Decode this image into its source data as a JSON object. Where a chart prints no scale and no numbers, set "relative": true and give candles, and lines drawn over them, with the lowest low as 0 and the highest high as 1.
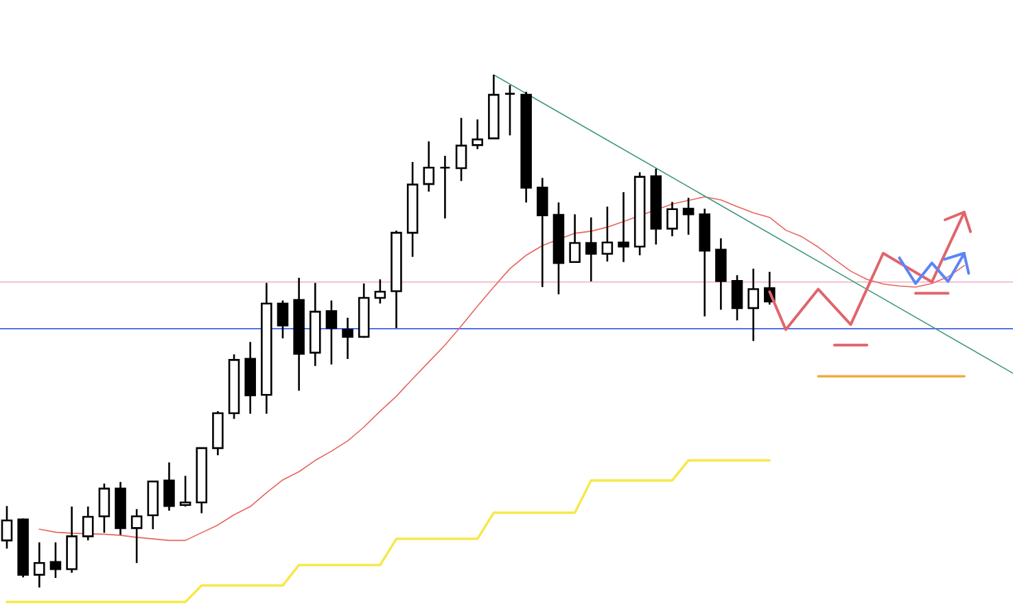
{
  "chart_data": {
    "type": "candlestick",
    "relative": true,
    "color": "#000000",
    "categories": [
      null,
      null,
      null,
      null,
      null,
      null,
      null,
      null,
      null,
      null,
      null,
      null,
      null,
      null,
      null,
      null,
      null,
      null,
      null,
      null,
      null,
      null,
      null,
      null,
      null,
      null,
      null,
      null,
      null,
      null,
      null,
      null,
      null,
      null,
      null,
      null,
      null,
      null,
      null,
      null,
      null,
      null,
      null,
      null,
      null,
      null,
      null,
      null,
      null,
      null,
      null,
      null,
      null,
      null,
      null,
      null,
      null,
      null,
      null,
      null,
      null,
      null,
      null
    ],
    "ohlc": [
      [
        0.092,
        0.159,
        0.076,
        0.131
      ],
      [
        0.133,
        0.135,
        0.02,
        0.025
      ],
      [
        0.025,
        0.088,
        0,
        0.048
      ],
      [
        0.05,
        0.088,
        0.019,
        0.036
      ],
      [
        0.036,
        0.158,
        0.029,
        0.1
      ],
      [
        0.1,
        0.158,
        0.092,
        0.138
      ],
      [
        0.139,
        0.203,
        0.107,
        0.193
      ],
      [
        0.193,
        0.206,
        0.103,
        0.116
      ],
      [
        0.116,
        0.153,
        0.048,
        0.139
      ],
      [
        0.141,
        0.207,
        0.114,
        0.207
      ],
      [
        0.209,
        0.244,
        0.15,
        0.159
      ],
      [
        0.161,
        0.218,
        0.158,
        0.166
      ],
      [
        0.166,
        0.274,
        0.145,
        0.272
      ],
      [
        0.272,
        0.344,
        0.258,
        0.34
      ],
      [
        0.34,
        0.455,
        0.329,
        0.444
      ],
      [
        0.446,
        0.479,
        0.339,
        0.375
      ],
      [
        0.376,
        0.594,
        0.339,
        0.554
      ],
      [
        0.554,
        0.56,
        0.486,
        0.511
      ],
      [
        0.561,
        0.604,
        0.384,
        0.456
      ],
      [
        0.458,
        0.594,
        0.432,
        0.538
      ],
      [
        0.539,
        0.56,
        0.435,
        0.506
      ],
      [
        0.503,
        0.526,
        0.446,
        0.489
      ],
      [
        0.489,
        0.593,
        0.487,
        0.565
      ],
      [
        0.565,
        0.601,
        0.554,
        0.577
      ],
      [
        0.578,
        0.696,
        0.506,
        0.692
      ],
      [
        0.692,
        0.83,
        0.645,
        0.786
      ],
      [
        0.787,
        0.87,
        0.772,
        0.819
      ],
      [
        0.819,
        0.842,
        0.72,
        0.819
      ],
      [
        0.818,
        0.916,
        0.793,
        0.862
      ],
      [
        0.863,
        0.913,
        0.855,
        0.874
      ],
      [
        0.876,
        1,
        0.876,
        0.961
      ],
      [
        0.963,
        0.98,
        0.882,
        0.963
      ],
      [
        0.961,
        0.967,
        0.751,
        0.78
      ],
      [
        0.78,
        0.799,
        0.586,
        0.726
      ],
      [
        0.727,
        0.751,
        0.572,
        0.633
      ],
      [
        0.635,
        0.728,
        0.635,
        0.672
      ],
      [
        0.672,
        0.722,
        0.597,
        0.651
      ],
      [
        0.651,
        0.743,
        0.636,
        0.673
      ],
      [
        0.673,
        0.771,
        0.635,
        0.665
      ],
      [
        0.665,
        0.81,
        0.648,
        0.801
      ],
      [
        0.802,
        0.817,
        0.669,
        0.7
      ],
      [
        0.7,
        0.752,
        0.685,
        0.738
      ],
      [
        0.739,
        0.76,
        0.688,
        0.728
      ],
      [
        0.728,
        0.739,
        0.529,
        0.657
      ],
      [
        0.659,
        0.681,
        0.542,
        0.598
      ],
      [
        0.598,
        0.609,
        0.521,
        0.545
      ],
      [
        0.545,
        0.622,
        0.481,
        0.582
      ],
      [
        0.584,
        0.616,
        0.552,
        0.558
      ],
      null,
      null,
      null,
      null,
      null,
      null,
      null,
      null,
      null,
      null,
      null,
      null,
      null,
      null,
      null
    ],
    "series": [
      {
        "type": "line",
        "color": "#e8635c",
        "values": [
          null,
          null,
          0.114,
          0.108,
          0.106,
          null,
          0.104,
          0.102,
          0.098,
          0.095,
          0.092,
          0.092,
          0.107,
          0.122,
          0.142,
          0.158,
          0.185,
          0.21,
          0.226,
          0.248,
          0.266,
          0.286,
          0.313,
          0.344,
          0.373,
          0.407,
          0.44,
          0.473,
          0.51,
          0.549,
          0.586,
          0.622,
          0.648,
          0.667,
          null,
          0.691,
          0.695,
          0.703,
          0.714,
          null,
          null,
          0.748,
          0.755,
          0.762,
          0.756,
          0.743,
          0.731,
          0.722,
          0.697,
          0.684,
          0.664,
          0.64,
          0.617,
          0.601,
          0.592,
          0.588,
          0.586,
          0.593,
          0.606,
          0.628,
          null,
          null,
          null
        ]
      },
      {
        "type": "line",
        "color": "#f7e84a",
        "values": [
          -0.028,
          -0.028,
          -0.028,
          -0.028,
          -0.028,
          -0.028,
          -0.028,
          -0.028,
          -0.028,
          -0.028,
          -0.028,
          -0.028,
          0.004,
          0.004,
          0.004,
          0.004,
          0.004,
          0.004,
          0.044,
          0.044,
          0.044,
          0.044,
          0.044,
          0.044,
          0.095,
          0.095,
          0.095,
          0.095,
          0.095,
          0.095,
          0.146,
          0.146,
          0.146,
          0.146,
          0.146,
          0.146,
          0.209,
          0.209,
          0.209,
          0.209,
          0.209,
          0.209,
          0.248,
          0.248,
          0.248,
          0.248,
          0.248,
          0.248,
          null,
          null,
          null,
          null,
          null,
          null,
          null,
          null,
          null,
          null,
          null,
          null,
          null,
          null,
          null
        ]
      },
      {
        "type": "line",
        "color": "#3f9a7a",
        "values": [
          null,
          null,
          null,
          null,
          null,
          null,
          null,
          null,
          null,
          null,
          null,
          null,
          null,
          null,
          null,
          null,
          null,
          null,
          null,
          null,
          null,
          null,
          null,
          null,
          null,
          null,
          null,
          null,
          null,
          null,
          1,
          null,
          null,
          null,
          null,
          null,
          null,
          null,
          null,
          null,
          null,
          null,
          null,
          null,
          null,
          null,
          null,
          null,
          null,
          null,
          null,
          null,
          null,
          null,
          null,
          null,
          null,
          null,
          null,
          null,
          null,
          null,
          0.418
        ]
      },
      {
        "type": "line",
        "color": "#f0ab3f",
        "values": [
          null,
          null,
          null,
          null,
          null,
          null,
          null,
          null,
          null,
          null,
          null,
          null,
          null,
          null,
          null,
          null,
          null,
          null,
          null,
          null,
          null,
          null,
          null,
          null,
          null,
          null,
          null,
          null,
          null,
          null,
          null,
          null,
          null,
          null,
          null,
          null,
          null,
          null,
          null,
          null,
          null,
          null,
          null,
          null,
          null,
          null,
          null,
          null,
          null,
          null,
          0.412,
          null,
          null,
          null,
          null,
          null,
          null,
          null,
          null,
          0.412,
          null,
          null,
          null
        ]
      },
      {
        "type": "line",
        "color": "#e0656b",
        "values": [
          null,
          null,
          null,
          null,
          null,
          null,
          null,
          null,
          null,
          null,
          null,
          null,
          null,
          null,
          null,
          null,
          null,
          null,
          null,
          null,
          null,
          null,
          null,
          null,
          null,
          null,
          null,
          null,
          null,
          null,
          null,
          null,
          null,
          null,
          null,
          null,
          null,
          null,
          null,
          null,
          null,
          null,
          null,
          null,
          null,
          null,
          null,
          null,
          null,
          null,
          null,
          0.473,
          null,
          0.473,
          null,
          null,
          null,
          null,
          null,
          null,
          null,
          null,
          null
        ]
      },
      {
        "type": "line",
        "color": "#e0656b",
        "values": [
          null,
          null,
          null,
          null,
          null,
          null,
          null,
          null,
          null,
          null,
          null,
          null,
          null,
          null,
          null,
          null,
          null,
          null,
          null,
          null,
          null,
          null,
          null,
          null,
          null,
          null,
          null,
          null,
          null,
          null,
          null,
          null,
          null,
          null,
          null,
          null,
          null,
          null,
          null,
          null,
          null,
          null,
          null,
          null,
          null,
          null,
          null,
          null,
          null,
          null,
          null,
          null,
          null,
          null,
          null,
          null,
          0.574,
          null,
          0.574,
          null,
          null,
          null,
          null
        ]
      },
      {
        "type": "line",
        "color": "#e0656b",
        "values": [
          null,
          null,
          null,
          null,
          null,
          null,
          null,
          null,
          null,
          null,
          null,
          null,
          null,
          null,
          null,
          null,
          null,
          null,
          null,
          null,
          null,
          null,
          null,
          null,
          null,
          null,
          null,
          null,
          null,
          null,
          null,
          null,
          null,
          null,
          null,
          null,
          null,
          null,
          null,
          null,
          null,
          null,
          null,
          null,
          null,
          null,
          null,
          0.577,
          0.503,
          null,
          0.582,
          null,
          0.513,
          null,
          0.652,
          null,
          null,
          0.596,
          null,
          0.732,
          null,
          null,
          null
        ]
      },
      {
        "type": "line",
        "color": "#5c85f7",
        "values": [
          null,
          null,
          null,
          null,
          null,
          null,
          null,
          null,
          null,
          null,
          null,
          null,
          null,
          null,
          null,
          null,
          null,
          null,
          null,
          null,
          null,
          null,
          null,
          null,
          null,
          null,
          null,
          null,
          null,
          null,
          null,
          null,
          null,
          null,
          null,
          null,
          null,
          null,
          null,
          null,
          null,
          null,
          null,
          null,
          null,
          null,
          null,
          null,
          null,
          null,
          null,
          null,
          null,
          null,
          null,
          0.643,
          0.593,
          0.633,
          0.597,
          0.652,
          null,
          null,
          null
        ]
      }
    ],
    "ref_lines": [
      {
        "axis": "y",
        "value": 0.596,
        "color": "#f2b9cb"
      },
      {
        "axis": "y",
        "value": 0.505,
        "color": "#3c5cf2"
      }
    ]
  }
}
